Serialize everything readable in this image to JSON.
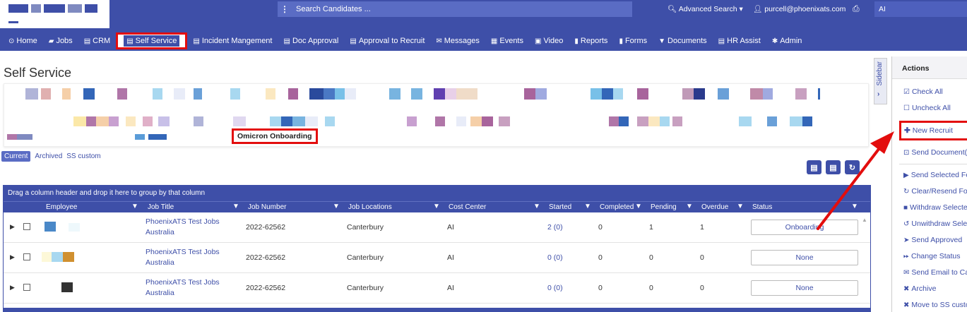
{
  "topbar": {
    "search_placeholder": "Search Candidates ...",
    "advanced_search": "Advanced Search",
    "user_email": "purcell@phoenixats.com",
    "right_field": "AI"
  },
  "nav": {
    "items": [
      {
        "label": "Home",
        "icon": "⚙"
      },
      {
        "label": "Jobs",
        "icon": "▰"
      },
      {
        "label": "CRM",
        "icon": "▤"
      },
      {
        "label": "Self Service",
        "icon": "▤"
      },
      {
        "label": "Incident Mangement",
        "icon": "▤"
      },
      {
        "label": "Doc Approval",
        "icon": "▤"
      },
      {
        "label": "Approval to Recruit",
        "icon": "▤"
      },
      {
        "label": "Messages",
        "icon": "✉"
      },
      {
        "label": "Events",
        "icon": "▦"
      },
      {
        "label": "Video",
        "icon": "▣"
      },
      {
        "label": "Reports",
        "icon": "▮"
      },
      {
        "label": "Forms",
        "icon": "▮"
      },
      {
        "label": "Documents",
        "icon": "▼"
      },
      {
        "label": "HR Assist",
        "icon": "▤"
      },
      {
        "label": "Admin",
        "icon": "✱"
      }
    ]
  },
  "page": {
    "title": "Self Service",
    "highlight_chip": "Omicron Onboarding"
  },
  "subtabs": {
    "current": "Current",
    "archived": "Archived",
    "ss_custom": "SS custom"
  },
  "grid": {
    "group_hint": "Drag a column header and drop it here to group by that column",
    "columns": [
      "Employee",
      "Job Title",
      "Job Number",
      "Job Locations",
      "Cost Center",
      "Started",
      "Completed",
      "Pending",
      "Overdue",
      "Status"
    ],
    "rows": [
      {
        "job_title_1": "PhoenixATS Test Jobs",
        "job_title_2": "Australia",
        "job_number": "2022-62562",
        "location": "Canterbury",
        "cost_center": "AI",
        "started": "2 (0)",
        "completed": "0",
        "pending": "1",
        "overdue": "1",
        "status": "Onboarding"
      },
      {
        "job_title_1": "PhoenixATS Test Jobs",
        "job_title_2": "Australia",
        "job_number": "2022-62562",
        "location": "Canterbury",
        "cost_center": "AI",
        "started": "0 (0)",
        "completed": "0",
        "pending": "0",
        "overdue": "0",
        "status": "None"
      },
      {
        "job_title_1": "PhoenixATS Test Jobs",
        "job_title_2": "Australia",
        "job_number": "2022-62562",
        "location": "Canterbury",
        "cost_center": "AI",
        "started": "0 (0)",
        "completed": "0",
        "pending": "0",
        "overdue": "0",
        "status": "None"
      }
    ]
  },
  "sidebar_tab": {
    "label": "Sidebar"
  },
  "actions": {
    "title": "Actions",
    "check_all": "Check All",
    "uncheck_all": "Uncheck All",
    "new_recruit": "New Recruit",
    "send_document": "Send Document(",
    "send_selected": "Send Selected Fo",
    "clear_resend": "Clear/Resend Fo",
    "withdraw": "Withdraw Selecte",
    "unwithdraw": "Unwithdraw Sele",
    "send_approved": "Send Approved",
    "change_status": "Change Status",
    "send_email": "Send Email to Ca",
    "archive": "Archive",
    "move_ss": "Move to SS custo"
  },
  "colors": {
    "brand": "#3e4fa8",
    "highlight": "#e30d0d"
  }
}
